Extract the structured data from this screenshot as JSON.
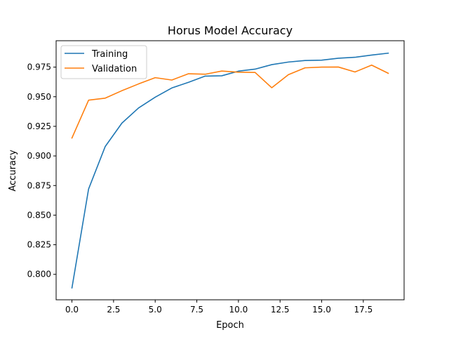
{
  "chart_data": {
    "type": "line",
    "title": "Horus Model Accuracy",
    "xlabel": "Epoch",
    "ylabel": "Accuracy",
    "xlim": [
      -0.95,
      19.95
    ],
    "ylim": [
      0.7785,
      0.9973
    ],
    "xticks": [
      0.0,
      2.5,
      5.0,
      7.5,
      10.0,
      12.5,
      15.0,
      17.5
    ],
    "xtick_labels": [
      "0.0",
      "2.5",
      "5.0",
      "7.5",
      "10.0",
      "12.5",
      "15.0",
      "17.5"
    ],
    "yticks": [
      0.8,
      0.825,
      0.85,
      0.875,
      0.9,
      0.925,
      0.95,
      0.975
    ],
    "ytick_labels": [
      "0.800",
      "0.825",
      "0.850",
      "0.875",
      "0.900",
      "0.925",
      "0.950",
      "0.975"
    ],
    "grid": false,
    "legend_position": "upper-left",
    "x": [
      0,
      1,
      2,
      3,
      4,
      5,
      6,
      7,
      8,
      9,
      10,
      11,
      12,
      13,
      14,
      15,
      16,
      17,
      18,
      19
    ],
    "series": [
      {
        "name": "Training",
        "color": "#1f77b4",
        "values": [
          0.7885,
          0.8721,
          0.908,
          0.9277,
          0.9405,
          0.9496,
          0.9574,
          0.9622,
          0.9674,
          0.9677,
          0.9716,
          0.9733,
          0.9771,
          0.9793,
          0.9806,
          0.9809,
          0.9825,
          0.9833,
          0.9852,
          0.9868
        ]
      },
      {
        "name": "Validation",
        "color": "#ff7f0e",
        "values": [
          0.9151,
          0.9471,
          0.9488,
          0.9551,
          0.9608,
          0.9661,
          0.9641,
          0.9694,
          0.969,
          0.9717,
          0.9707,
          0.9705,
          0.9576,
          0.9686,
          0.9744,
          0.975,
          0.9751,
          0.9709,
          0.9767,
          0.9698
        ]
      }
    ]
  }
}
